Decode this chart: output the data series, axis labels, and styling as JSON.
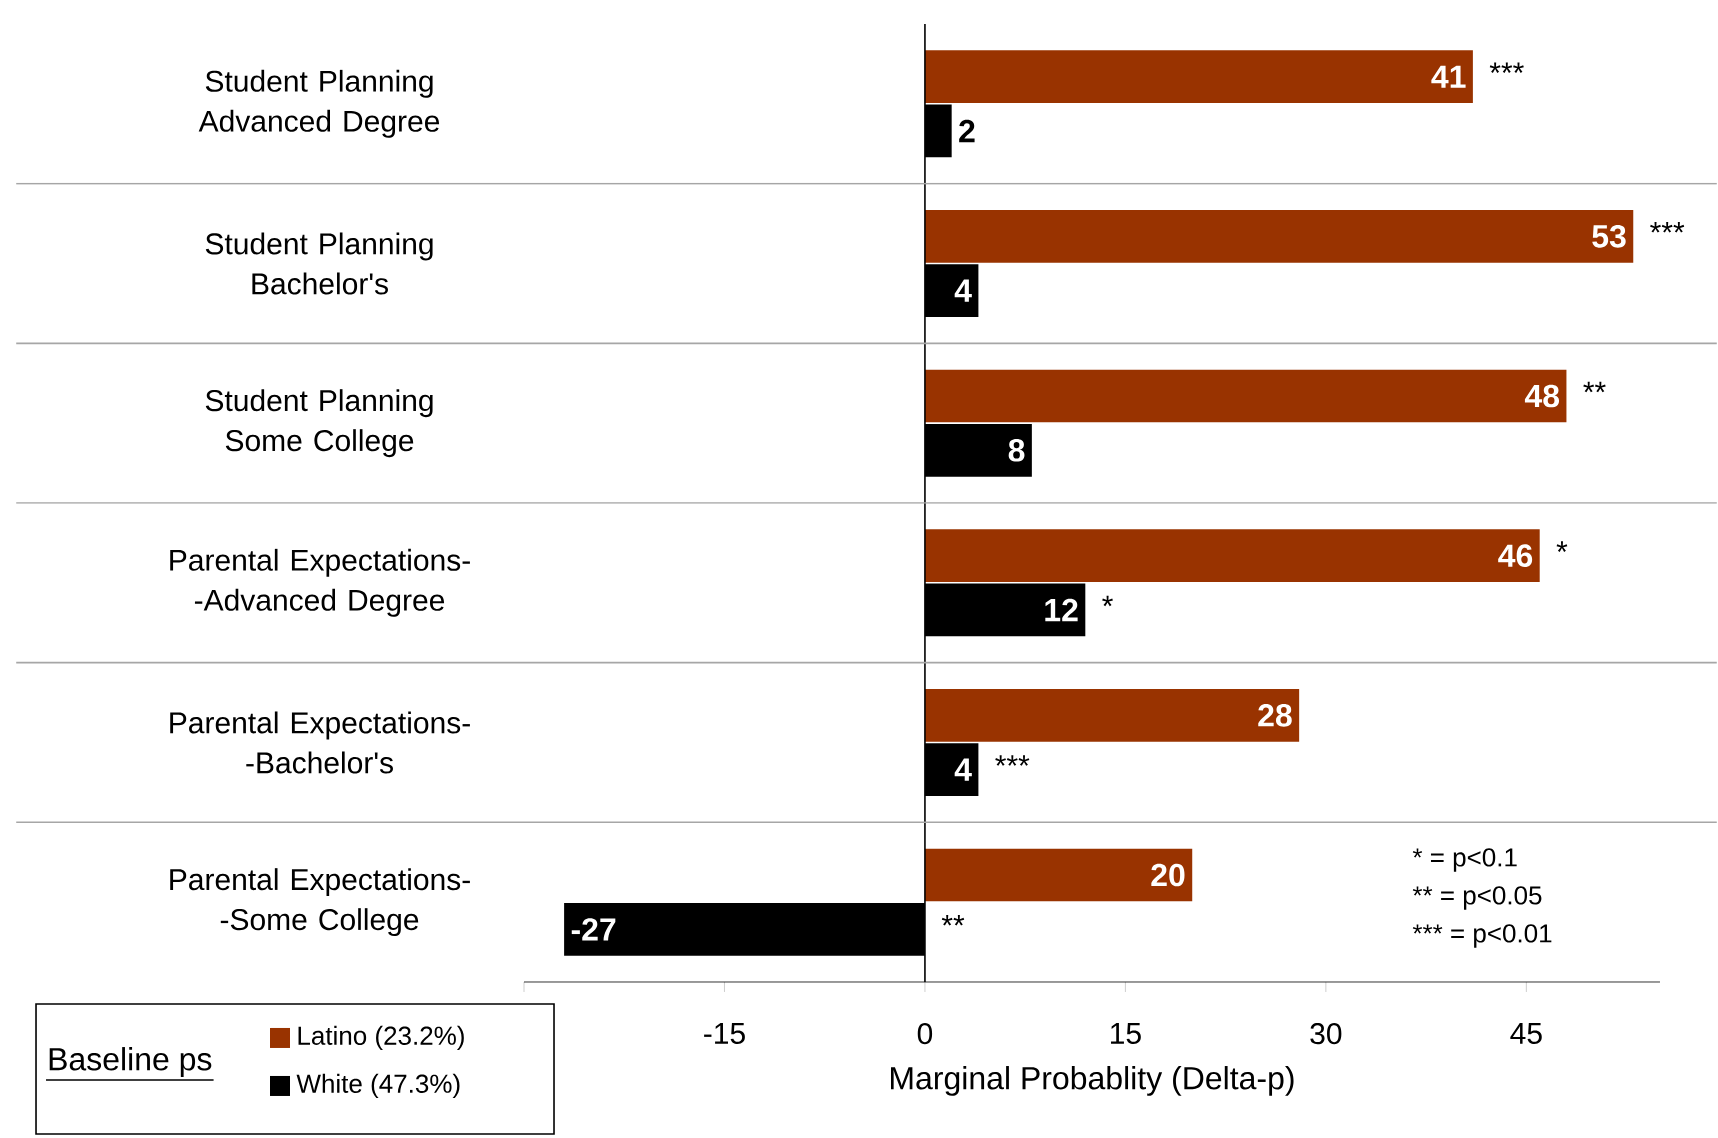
{
  "chart_data": {
    "type": "bar",
    "orientation": "horizontal",
    "xlabel": "Marginal Probablity (Delta-p)",
    "legend_title": "Baseline ps",
    "categories": [
      "Student Planning Advanced Degree",
      "Student Planning Bachelor's",
      "Student Planning Some College",
      "Parental Expectations--Advanced Degree",
      "Parental Expectations--Bachelor's",
      "Parental Expectations--Some College"
    ],
    "series": [
      {
        "name": "Latino (23.2%)",
        "color": "#993300",
        "values": [
          41,
          53,
          48,
          46,
          28,
          20
        ]
      },
      {
        "name": "White (47.3%)",
        "color": "#000000",
        "values": [
          2,
          4,
          8,
          12,
          4,
          -27
        ]
      }
    ],
    "xlim": [
      -30,
      55
    ],
    "xticks": [
      {
        "value": -30,
        "label": null
      },
      -15,
      0,
      15,
      30,
      45
    ],
    "data_labels": true,
    "grid": "y",
    "legend": "bottom left",
    "annotations": [
      {
        "text": "***",
        "x": 41,
        "y": "Student Planning Advanced Degree"
      },
      {
        "text": "***",
        "x": 53,
        "y": "Student Planning Bachelor's"
      },
      {
        "text": "**",
        "x": 48,
        "y": "Student Planning Some College"
      },
      {
        "text": "*",
        "x": 46,
        "y": "Parental Expectations--Advanced Degree"
      },
      {
        "text": "*",
        "x": 12,
        "y": "Parental Expectations--Advanced Degree"
      },
      {
        "text": "***",
        "x": 4,
        "y": "Parental Expectations--Bachelor's"
      },
      {
        "text": "**",
        "x": 0,
        "y": "Parental Expectations--Some College"
      },
      "* = p<0.1",
      "** = p<0.05",
      "*** = p<0.01"
    ]
  }
}
